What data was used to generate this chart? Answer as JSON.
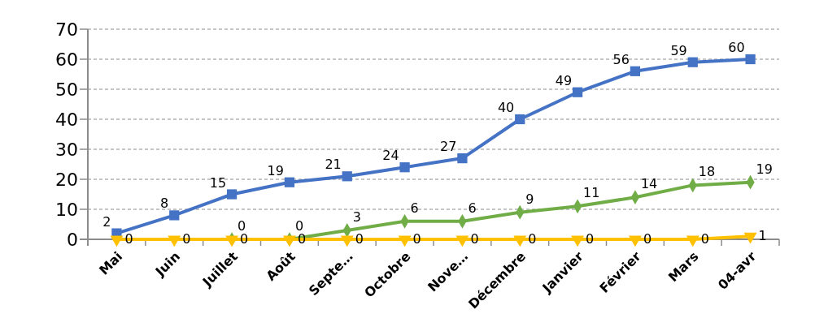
{
  "chart_data": {
    "type": "line",
    "categories": [
      "Mai",
      "Juin",
      "Juillet",
      "Août",
      "Septe…",
      "Octobre",
      "Nove…",
      "Décembre",
      "Janvier",
      "Février",
      "Mars",
      "04-avr"
    ],
    "series": [
      {
        "color": "#4472c4",
        "marker": "square",
        "values": [
          2,
          8,
          15,
          19,
          21,
          24,
          27,
          40,
          49,
          56,
          59,
          60
        ]
      },
      {
        "color": "#70ad47",
        "marker": "diamond",
        "values": [
          null,
          null,
          0,
          0,
          3,
          6,
          6,
          9,
          11,
          14,
          18,
          19
        ]
      },
      {
        "color": "#ffc000",
        "marker": "triangle",
        "values": [
          0,
          0,
          0,
          0,
          0,
          0,
          0,
          0,
          0,
          0,
          0,
          1
        ]
      }
    ],
    "ylim": [
      0,
      70
    ],
    "yticks": [
      0,
      10,
      20,
      30,
      40,
      50,
      60,
      70
    ],
    "grid": "y",
    "legend": false,
    "data_labels": true
  }
}
